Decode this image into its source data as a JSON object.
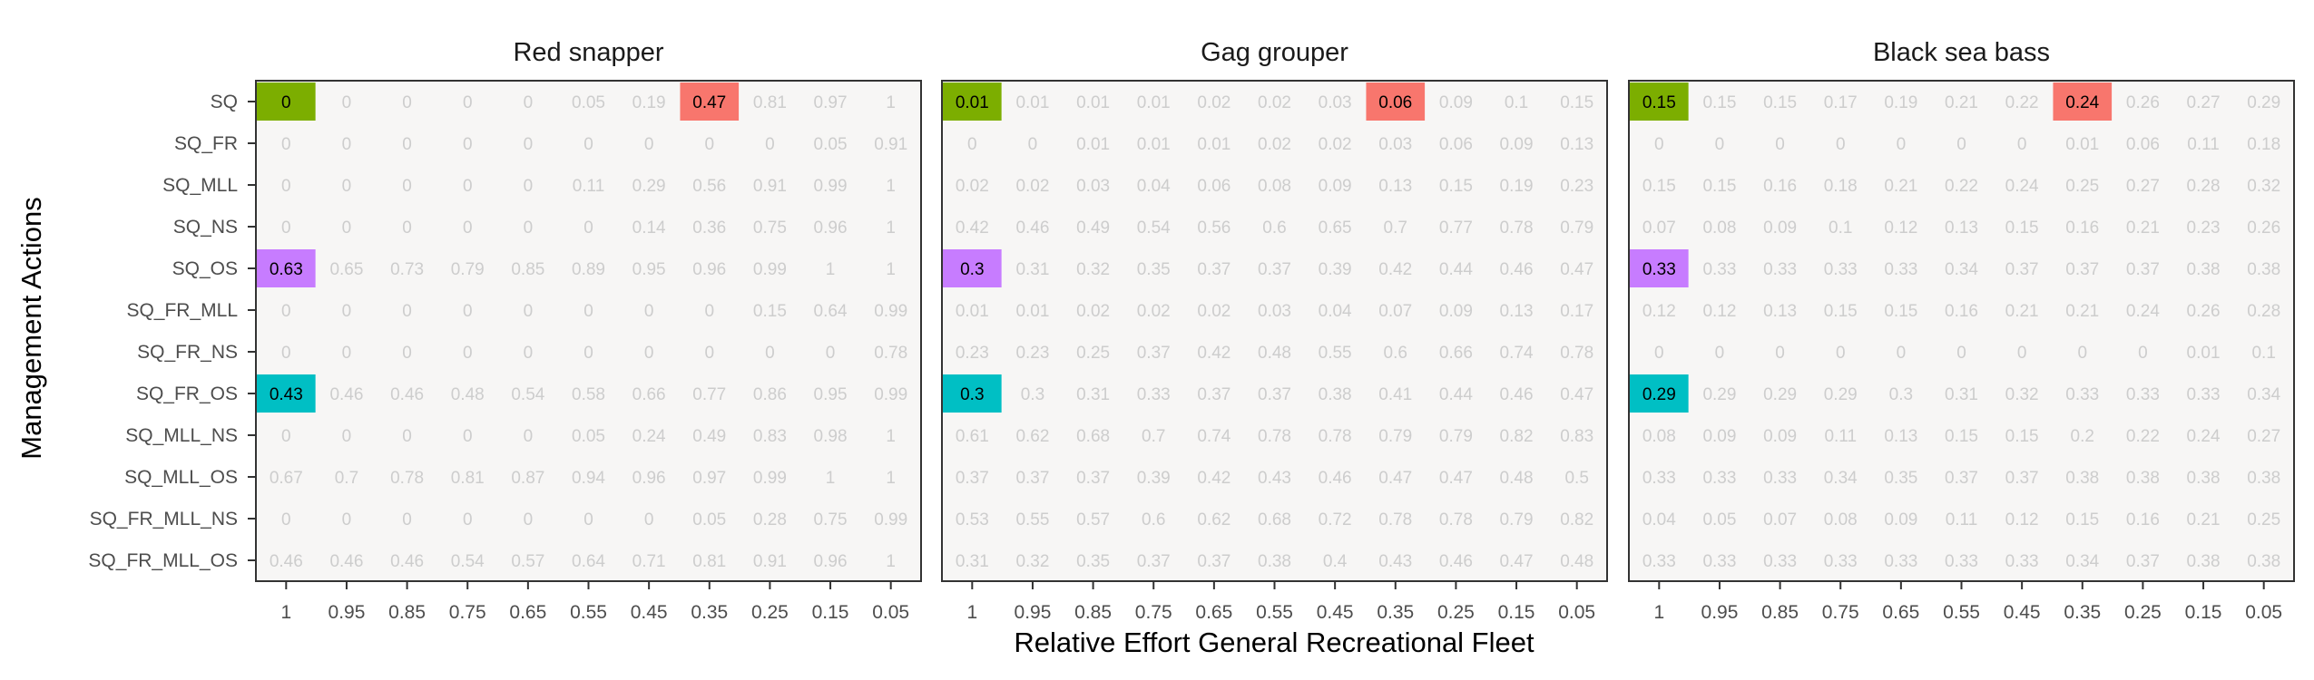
{
  "chart_data": {
    "type": "heatmap",
    "ylabel": "Management Actions",
    "xlabel": "Relative Effort General Recreational Fleet",
    "x_ticks": [
      "1",
      "0.95",
      "0.85",
      "0.75",
      "0.65",
      "0.55",
      "0.45",
      "0.35",
      "0.25",
      "0.15",
      "0.05"
    ],
    "y_categories": [
      "SQ",
      "SQ_FR",
      "SQ_MLL",
      "SQ_NS",
      "SQ_OS",
      "SQ_FR_MLL",
      "SQ_FR_NS",
      "SQ_FR_OS",
      "SQ_MLL_NS",
      "SQ_MLL_OS",
      "SQ_FR_MLL_NS",
      "SQ_FR_MLL_OS"
    ],
    "highlight_colors": {
      "SQ": "#7CAE00",
      "SQ_OS": "#C77CFF",
      "SQ_FR_OS": "#00BFC4",
      "SQ@0.35": "#F8766D"
    },
    "panel_background": "#F7F6F5",
    "panels": [
      {
        "title": "Red snapper",
        "values": [
          [
            "0",
            "0",
            "0",
            "0",
            "0",
            "0.05",
            "0.19",
            "0.47",
            "0.81",
            "0.97",
            "1"
          ],
          [
            "0",
            "0",
            "0",
            "0",
            "0",
            "0",
            "0",
            "0",
            "0",
            "0.05",
            "0.91"
          ],
          [
            "0",
            "0",
            "0",
            "0",
            "0",
            "0.11",
            "0.29",
            "0.56",
            "0.91",
            "0.99",
            "1"
          ],
          [
            "0",
            "0",
            "0",
            "0",
            "0",
            "0",
            "0.14",
            "0.36",
            "0.75",
            "0.96",
            "1"
          ],
          [
            "0.63",
            "0.65",
            "0.73",
            "0.79",
            "0.85",
            "0.89",
            "0.95",
            "0.96",
            "0.99",
            "1",
            "1"
          ],
          [
            "0",
            "0",
            "0",
            "0",
            "0",
            "0",
            "0",
            "0",
            "0.15",
            "0.64",
            "0.99"
          ],
          [
            "0",
            "0",
            "0",
            "0",
            "0",
            "0",
            "0",
            "0",
            "0",
            "0",
            "0.78"
          ],
          [
            "0.43",
            "0.46",
            "0.46",
            "0.48",
            "0.54",
            "0.58",
            "0.66",
            "0.77",
            "0.86",
            "0.95",
            "0.99"
          ],
          [
            "0",
            "0",
            "0",
            "0",
            "0",
            "0.05",
            "0.24",
            "0.49",
            "0.83",
            "0.98",
            "1"
          ],
          [
            "0.67",
            "0.7",
            "0.78",
            "0.81",
            "0.87",
            "0.94",
            "0.96",
            "0.97",
            "0.99",
            "1",
            "1"
          ],
          [
            "0",
            "0",
            "0",
            "0",
            "0",
            "0",
            "0",
            "0.05",
            "0.28",
            "0.75",
            "0.99"
          ],
          [
            "0.46",
            "0.46",
            "0.46",
            "0.54",
            "0.57",
            "0.64",
            "0.71",
            "0.81",
            "0.91",
            "0.96",
            "1"
          ]
        ]
      },
      {
        "title": "Gag grouper",
        "values": [
          [
            "0.01",
            "0.01",
            "0.01",
            "0.01",
            "0.02",
            "0.02",
            "0.03",
            "0.06",
            "0.09",
            "0.1",
            "0.15"
          ],
          [
            "0",
            "0",
            "0.01",
            "0.01",
            "0.01",
            "0.02",
            "0.02",
            "0.03",
            "0.06",
            "0.09",
            "0.13"
          ],
          [
            "0.02",
            "0.02",
            "0.03",
            "0.04",
            "0.06",
            "0.08",
            "0.09",
            "0.13",
            "0.15",
            "0.19",
            "0.23"
          ],
          [
            "0.42",
            "0.46",
            "0.49",
            "0.54",
            "0.56",
            "0.6",
            "0.65",
            "0.7",
            "0.77",
            "0.78",
            "0.79"
          ],
          [
            "0.3",
            "0.31",
            "0.32",
            "0.35",
            "0.37",
            "0.37",
            "0.39",
            "0.42",
            "0.44",
            "0.46",
            "0.47"
          ],
          [
            "0.01",
            "0.01",
            "0.02",
            "0.02",
            "0.02",
            "0.03",
            "0.04",
            "0.07",
            "0.09",
            "0.13",
            "0.17"
          ],
          [
            "0.23",
            "0.23",
            "0.25",
            "0.37",
            "0.42",
            "0.48",
            "0.55",
            "0.6",
            "0.66",
            "0.74",
            "0.78"
          ],
          [
            "0.3",
            "0.3",
            "0.31",
            "0.33",
            "0.37",
            "0.37",
            "0.38",
            "0.41",
            "0.44",
            "0.46",
            "0.47"
          ],
          [
            "0.61",
            "0.62",
            "0.68",
            "0.7",
            "0.74",
            "0.78",
            "0.78",
            "0.79",
            "0.79",
            "0.82",
            "0.83"
          ],
          [
            "0.37",
            "0.37",
            "0.37",
            "0.39",
            "0.42",
            "0.43",
            "0.46",
            "0.47",
            "0.47",
            "0.48",
            "0.5"
          ],
          [
            "0.53",
            "0.55",
            "0.57",
            "0.6",
            "0.62",
            "0.68",
            "0.72",
            "0.78",
            "0.78",
            "0.79",
            "0.82"
          ],
          [
            "0.31",
            "0.32",
            "0.35",
            "0.37",
            "0.37",
            "0.38",
            "0.4",
            "0.43",
            "0.46",
            "0.47",
            "0.48"
          ]
        ]
      },
      {
        "title": "Black sea bass",
        "values": [
          [
            "0.15",
            "0.15",
            "0.15",
            "0.17",
            "0.19",
            "0.21",
            "0.22",
            "0.24",
            "0.26",
            "0.27",
            "0.29"
          ],
          [
            "0",
            "0",
            "0",
            "0",
            "0",
            "0",
            "0",
            "0.01",
            "0.06",
            "0.11",
            "0.18"
          ],
          [
            "0.15",
            "0.15",
            "0.16",
            "0.18",
            "0.21",
            "0.22",
            "0.24",
            "0.25",
            "0.27",
            "0.28",
            "0.32"
          ],
          [
            "0.07",
            "0.08",
            "0.09",
            "0.1",
            "0.12",
            "0.13",
            "0.15",
            "0.16",
            "0.21",
            "0.23",
            "0.26"
          ],
          [
            "0.33",
            "0.33",
            "0.33",
            "0.33",
            "0.33",
            "0.34",
            "0.37",
            "0.37",
            "0.37",
            "0.38",
            "0.38"
          ],
          [
            "0.12",
            "0.12",
            "0.13",
            "0.15",
            "0.15",
            "0.16",
            "0.21",
            "0.21",
            "0.24",
            "0.26",
            "0.28"
          ],
          [
            "0",
            "0",
            "0",
            "0",
            "0",
            "0",
            "0",
            "0",
            "0",
            "0.01",
            "0.1"
          ],
          [
            "0.29",
            "0.29",
            "0.29",
            "0.29",
            "0.3",
            "0.31",
            "0.32",
            "0.33",
            "0.33",
            "0.33",
            "0.34"
          ],
          [
            "0.08",
            "0.09",
            "0.09",
            "0.11",
            "0.13",
            "0.15",
            "0.15",
            "0.2",
            "0.22",
            "0.24",
            "0.27"
          ],
          [
            "0.33",
            "0.33",
            "0.33",
            "0.34",
            "0.35",
            "0.37",
            "0.37",
            "0.38",
            "0.38",
            "0.38",
            "0.38"
          ],
          [
            "0.04",
            "0.05",
            "0.07",
            "0.08",
            "0.09",
            "0.11",
            "0.12",
            "0.15",
            "0.16",
            "0.21",
            "0.25"
          ],
          [
            "0.33",
            "0.33",
            "0.33",
            "0.33",
            "0.33",
            "0.33",
            "0.33",
            "0.34",
            "0.37",
            "0.38",
            "0.38"
          ]
        ]
      }
    ]
  }
}
